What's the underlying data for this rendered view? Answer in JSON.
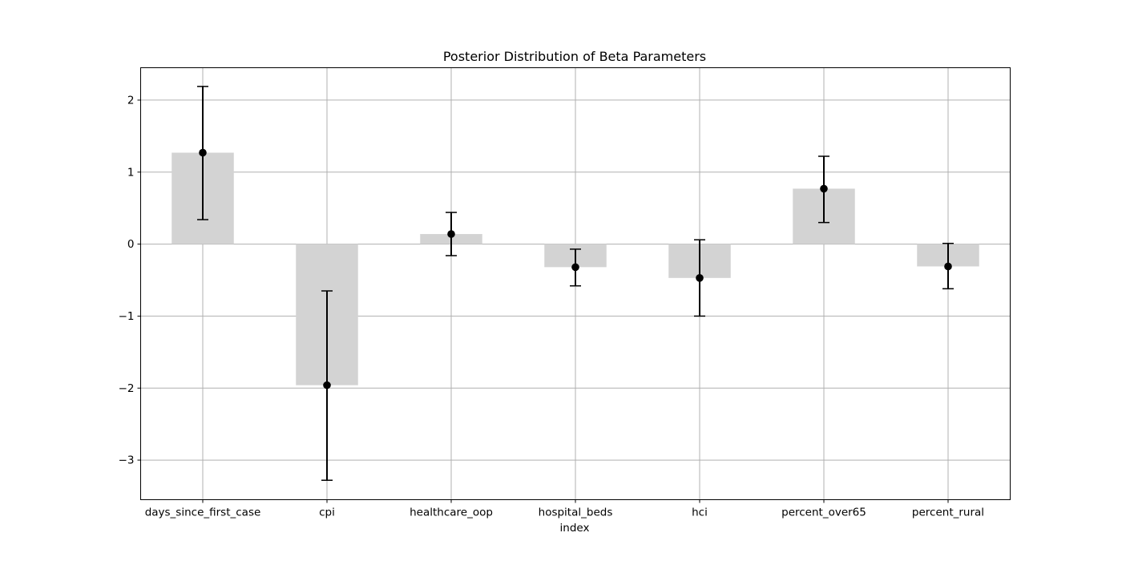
{
  "chart_data": {
    "type": "bar",
    "title": "Posterior Distribution of Beta Parameters",
    "xlabel": "index",
    "ylabel": "",
    "categories": [
      "days_since_first_case",
      "cpi",
      "healthcare_oop",
      "hospital_beds",
      "hci",
      "percent_over65",
      "percent_rural"
    ],
    "values": [
      1.27,
      -1.96,
      0.14,
      -0.32,
      -0.47,
      0.77,
      -0.31
    ],
    "error_low": [
      0.34,
      -3.28,
      -0.16,
      -0.58,
      -1.0,
      0.3,
      -0.62
    ],
    "error_high": [
      2.19,
      -0.65,
      0.44,
      -0.07,
      0.06,
      1.22,
      0.01
    ],
    "ylim": [
      -3.55,
      2.45
    ],
    "yticks": [
      -3,
      -2,
      -1,
      0,
      1,
      2
    ],
    "ytick_labels": [
      "−3",
      "−2",
      "−1",
      "0",
      "1",
      "2"
    ],
    "grid": true,
    "bar_color": "#d3d3d3",
    "point_color": "#000000",
    "errorbar_color": "#000000"
  }
}
